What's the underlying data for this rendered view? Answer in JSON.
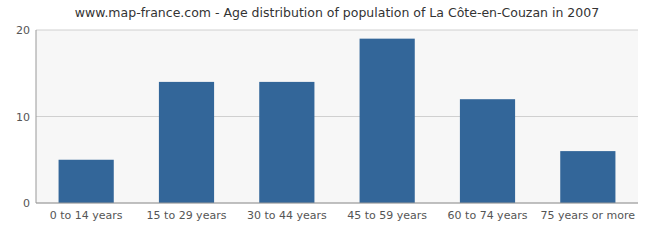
{
  "chart_data": {
    "type": "bar",
    "title": "www.map-france.com - Age distribution of population of La Côte-en-Couzan in 2007",
    "categories": [
      "0 to 14 years",
      "15 to 29 years",
      "30 to 44 years",
      "45 to 59 years",
      "60 to 74 years",
      "75 years or more"
    ],
    "values": [
      5,
      14,
      14,
      19,
      12,
      6
    ],
    "color": "#336699",
    "ylim": [
      0,
      20
    ],
    "yticks": [
      0,
      10,
      20
    ],
    "grid": true
  }
}
